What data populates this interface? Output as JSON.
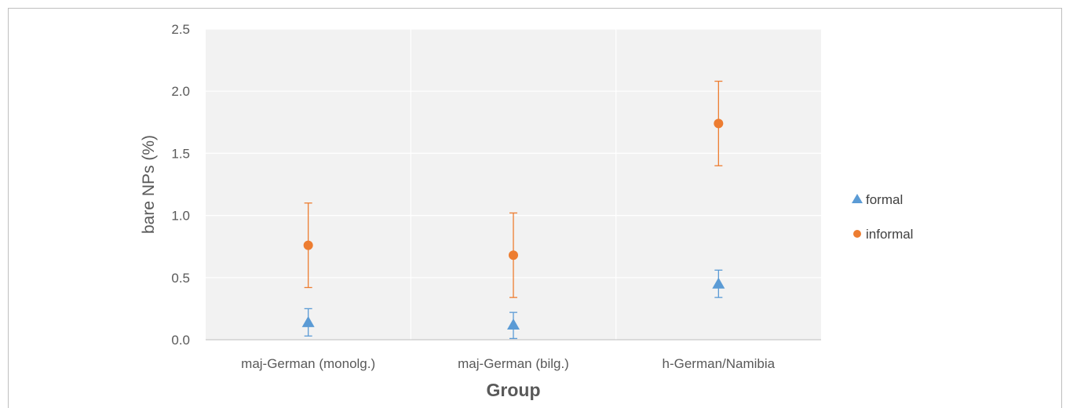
{
  "chart_data": {
    "type": "scatter",
    "title": "",
    "xlabel": "Group",
    "ylabel": "bare NPs (%)",
    "categories": [
      "maj-German (monolg.)",
      "maj-German (bilg.)",
      "h-German/Namibia"
    ],
    "ylim": [
      0,
      2.5
    ],
    "yticks": [
      "0.0",
      "0.5",
      "1.0",
      "1.5",
      "2.0",
      "2.5"
    ],
    "grid": true,
    "legend_position": "right",
    "series": [
      {
        "name": "formal",
        "marker": "triangle",
        "color": "#5b9bd5",
        "values": [
          0.14,
          0.12,
          0.45
        ],
        "error_low": [
          0.03,
          0.01,
          0.34
        ],
        "error_high": [
          0.25,
          0.22,
          0.56
        ]
      },
      {
        "name": "informal",
        "marker": "circle",
        "color": "#ed7d31",
        "values": [
          0.76,
          0.68,
          1.74
        ],
        "error_low": [
          0.42,
          0.34,
          1.4
        ],
        "error_high": [
          1.1,
          1.02,
          2.08
        ]
      }
    ]
  }
}
